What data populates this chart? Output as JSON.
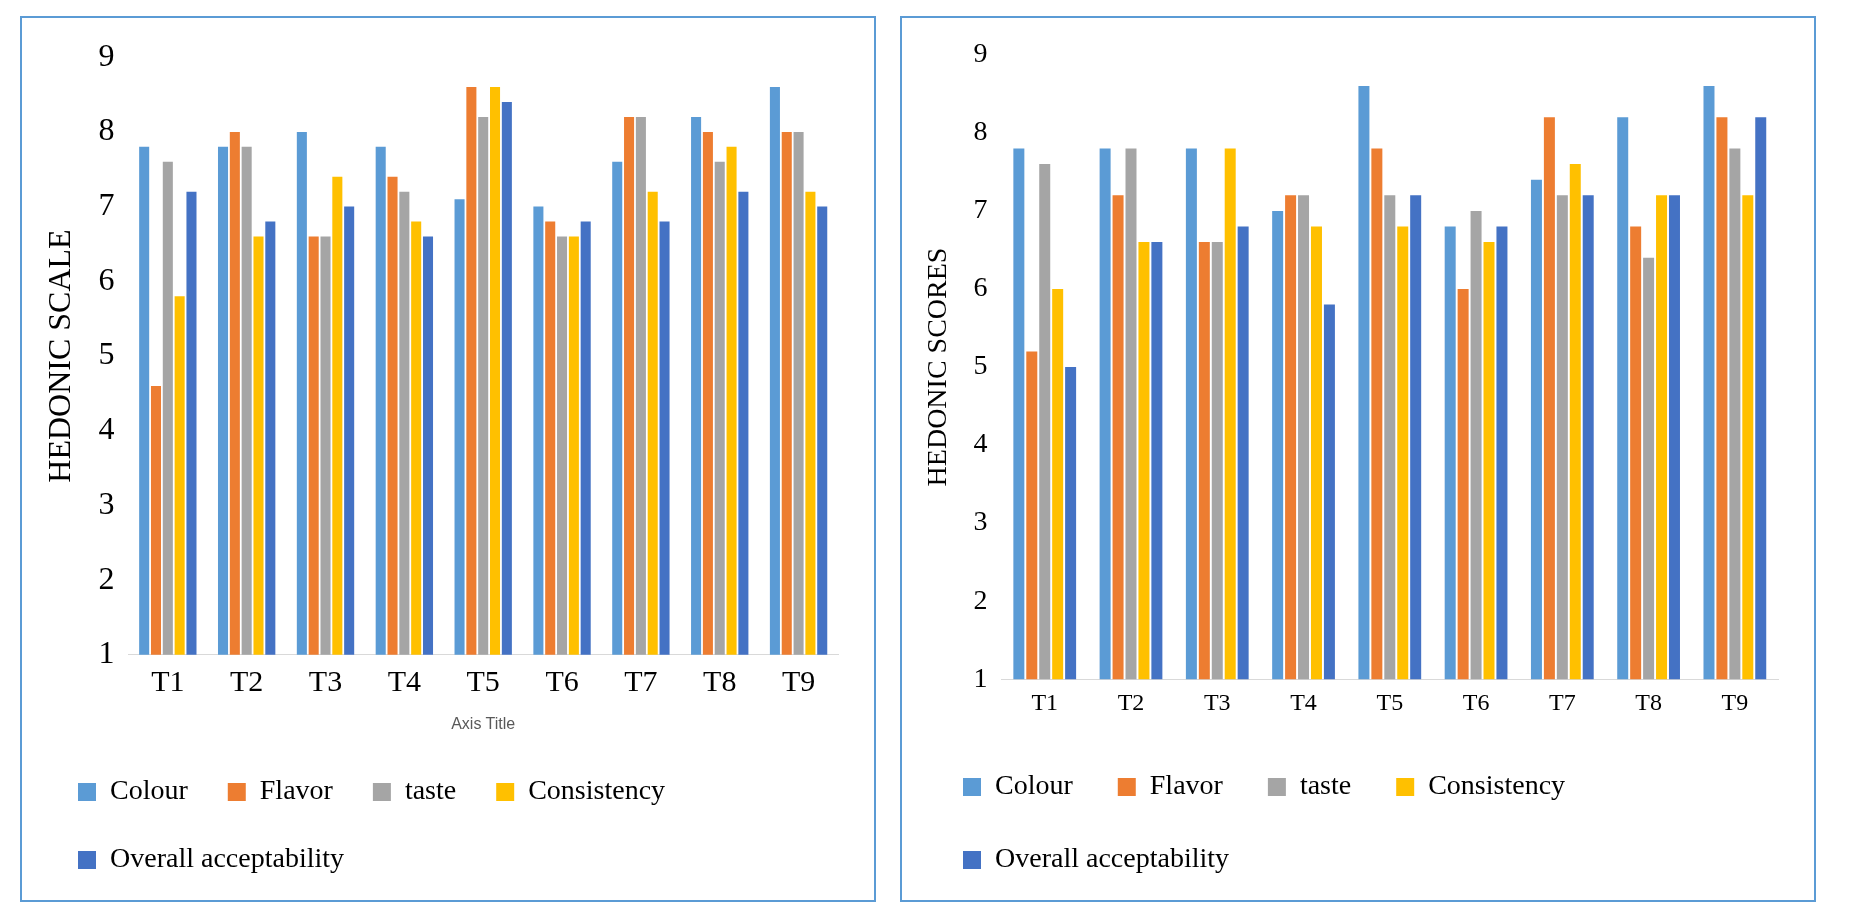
{
  "chart_data": [
    {
      "type": "bar",
      "ylabel": "HEDONIC SCALE",
      "xlabel": "Axis Title",
      "categories": [
        "T1",
        "T2",
        "T3",
        "T4",
        "T5",
        "T6",
        "T7",
        "T8",
        "T9"
      ],
      "ylim": [
        1,
        9
      ],
      "yticks": [
        1,
        2,
        3,
        4,
        5,
        6,
        7,
        8,
        9
      ],
      "grid": false,
      "legend": "bottom",
      "series": [
        {
          "name": "Colour",
          "color": "#5b9bd5",
          "values": [
            7.8,
            7.8,
            8,
            7.8,
            7.1,
            7,
            7.6,
            8.2,
            8.6
          ]
        },
        {
          "name": "Flavor",
          "color": "#ed7d31",
          "values": [
            4.6,
            8,
            6.6,
            7.4,
            8.6,
            6.8,
            8.2,
            8,
            8
          ]
        },
        {
          "name": "taste",
          "color": "#a5a5a5",
          "values": [
            7.6,
            7.8,
            6.6,
            7.2,
            8.2,
            6.6,
            8.2,
            7.6,
            8
          ]
        },
        {
          "name": "Consistency",
          "color": "#ffc000",
          "values": [
            5.8,
            6.6,
            7.4,
            6.8,
            8.6,
            6.6,
            7.2,
            7.8,
            7.2
          ]
        },
        {
          "name": "Overall acceptability",
          "color": "#4472c4",
          "values": [
            7.2,
            6.8,
            7,
            6.6,
            8.4,
            6.8,
            6.8,
            7.2,
            7
          ]
        }
      ]
    },
    {
      "type": "bar",
      "ylabel": "HEDONIC SCORES",
      "categories": [
        "T1",
        "T2",
        "T3",
        "T4",
        "T5",
        "T6",
        "T7",
        "T8",
        "T9"
      ],
      "ylim": [
        1,
        9
      ],
      "yticks": [
        1,
        2,
        3,
        4,
        5,
        6,
        7,
        8,
        9
      ],
      "grid": false,
      "legend": "bottom",
      "series": [
        {
          "name": "Colour",
          "color": "#5b9bd5",
          "values": [
            7.8,
            7.8,
            7.8,
            7,
            8.6,
            6.8,
            7.4,
            8.2,
            8.6
          ]
        },
        {
          "name": "Flavor",
          "color": "#ed7d31",
          "values": [
            5.2,
            7.2,
            6.6,
            7.2,
            7.8,
            6,
            8.2,
            6.8,
            8.2
          ]
        },
        {
          "name": "taste",
          "color": "#a5a5a5",
          "values": [
            7.6,
            7.8,
            6.6,
            7.2,
            7.2,
            7,
            7.2,
            6.4,
            7.8
          ]
        },
        {
          "name": "Consistency",
          "color": "#ffc000",
          "values": [
            6,
            6.6,
            7.8,
            6.8,
            6.8,
            6.6,
            7.6,
            7.2,
            7.2
          ]
        },
        {
          "name": "Overall acceptability",
          "color": "#4472c4",
          "values": [
            5,
            6.6,
            6.8,
            5.8,
            7.2,
            6.8,
            7.2,
            7.2,
            8.2
          ]
        }
      ]
    }
  ]
}
